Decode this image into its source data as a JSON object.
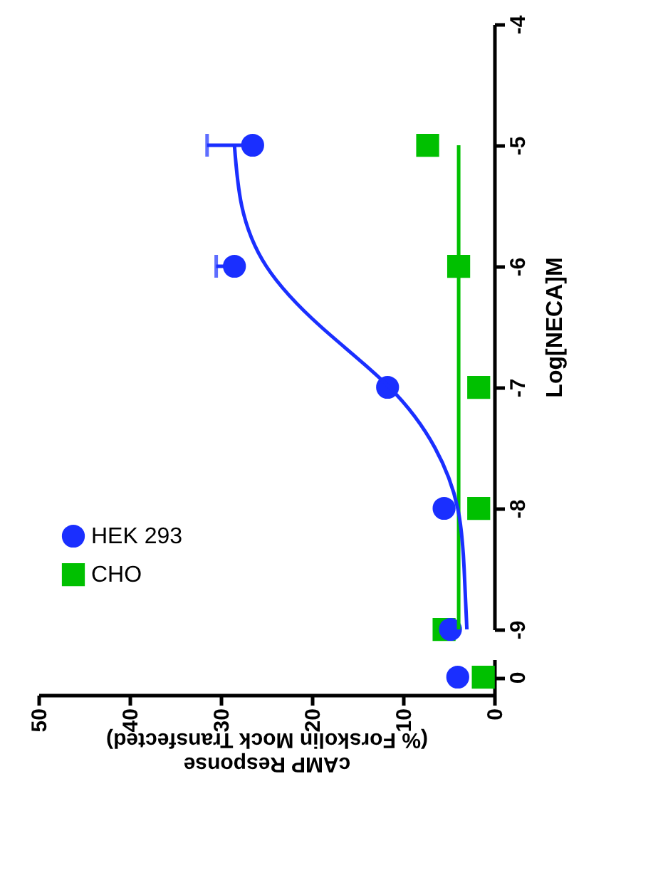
{
  "chart_data": [
    {
      "type": "scatter",
      "ylabel": "Log[NECA]M",
      "ylim": [
        -9,
        -4
      ],
      "yticks": [
        -9,
        -8,
        -7,
        -6,
        -5,
        -4
      ],
      "xlim": [
        50,
        0
      ],
      "tick_labels": "y",
      "grid": false,
      "legend": "bottom left",
      "series": [
        {
          "name": "HEK 293",
          "color": "#1a2fff",
          "marker": "circle",
          "x": [
            4.8,
            5.5,
            11.7,
            28.5,
            26.5
          ],
          "values": [
            -9,
            -8,
            -7,
            -6,
            -5
          ],
          "xerrors": [
            null,
            null,
            null,
            [
              28.5,
              30.5
            ],
            [
              26.5,
              31.5
            ]
          ]
        },
        {
          "name": "CHO",
          "color": "#00c000",
          "marker": "square",
          "x": [
            5.5,
            1.7,
            1.7,
            3.9,
            7.3
          ],
          "values": [
            -9,
            -8,
            -7,
            -6,
            -5
          ]
        },
        {
          "type": "line",
          "color": "#1a2fff",
          "marker": "none",
          "x": [
            3,
            3.3,
            4,
            6.5,
            11.5,
            19,
            25,
            27.7,
            28.5
          ],
          "values": [
            -9,
            -8.5,
            -8,
            -7.5,
            -7,
            -6.5,
            -6,
            -5.5,
            -5
          ]
        },
        {
          "type": "line",
          "color": "#00c000",
          "marker": "none",
          "x": [
            3.9,
            3.9
          ],
          "values": [
            -9,
            -5
          ]
        }
      ]
    },
    {
      "type": "scatter",
      "orientation": "horizontal",
      "xlabel": "cAMP Response\n(% Forskolin Mock Transfected)",
      "categories": [
        "0"
      ],
      "xlim": [
        50,
        0
      ],
      "xticks": [
        0,
        10,
        20,
        30,
        40,
        50
      ],
      "grid": false,
      "series": [
        {
          "color": "#1a2fff",
          "marker": "circle",
          "values": [
            4.0
          ]
        },
        {
          "color": "#00c000",
          "marker": "square",
          "values": [
            1.2
          ]
        }
      ]
    }
  ]
}
